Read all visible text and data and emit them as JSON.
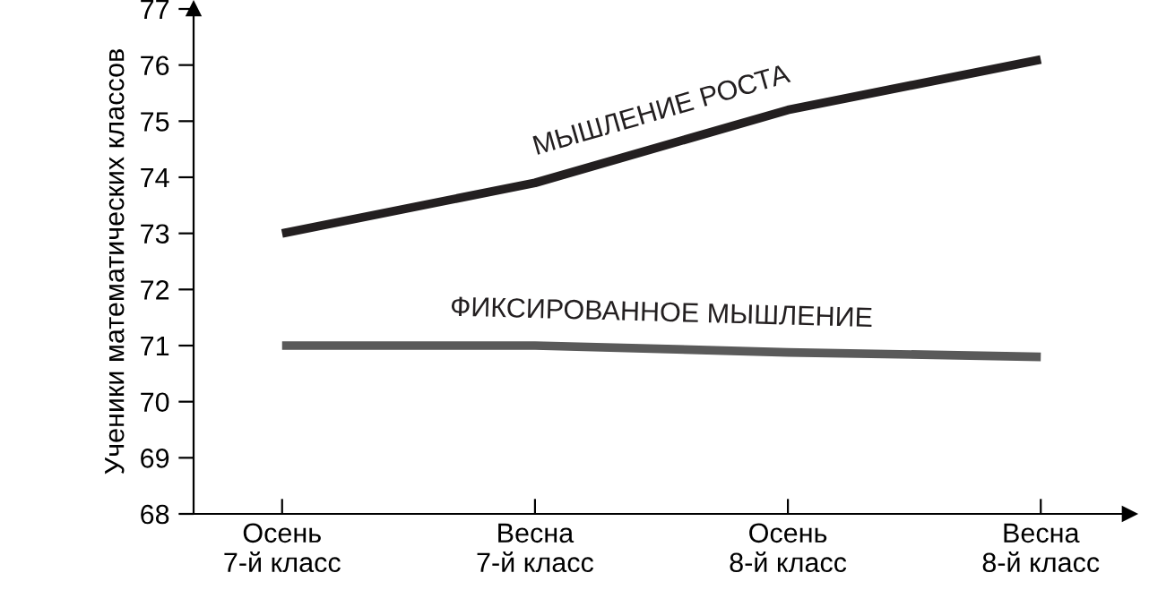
{
  "chart_data": {
    "type": "line",
    "ylabel": "Ученики математических классов",
    "categories": [
      "Осень\n7-й класс",
      "Весна\n7-й класс",
      "Осень\n8-й класс",
      "Весна\n8-й класс"
    ],
    "ylim": [
      68,
      77
    ],
    "yticks": [
      68,
      69,
      70,
      71,
      72,
      73,
      74,
      75,
      76,
      77
    ],
    "grid": false,
    "legend": false,
    "marker": "none",
    "line_style": "solid",
    "series": [
      {
        "name": "МЫШЛЕНИЕ РОСТА",
        "color": "#231f20",
        "values": [
          73,
          73.9,
          75.2,
          76.1
        ]
      },
      {
        "name": "ФИКСИРОВАННОЕ МЫШЛЕНИЕ",
        "color": "#5a5a5a",
        "values": [
          71,
          71,
          70.88,
          70.8
        ]
      }
    ]
  }
}
